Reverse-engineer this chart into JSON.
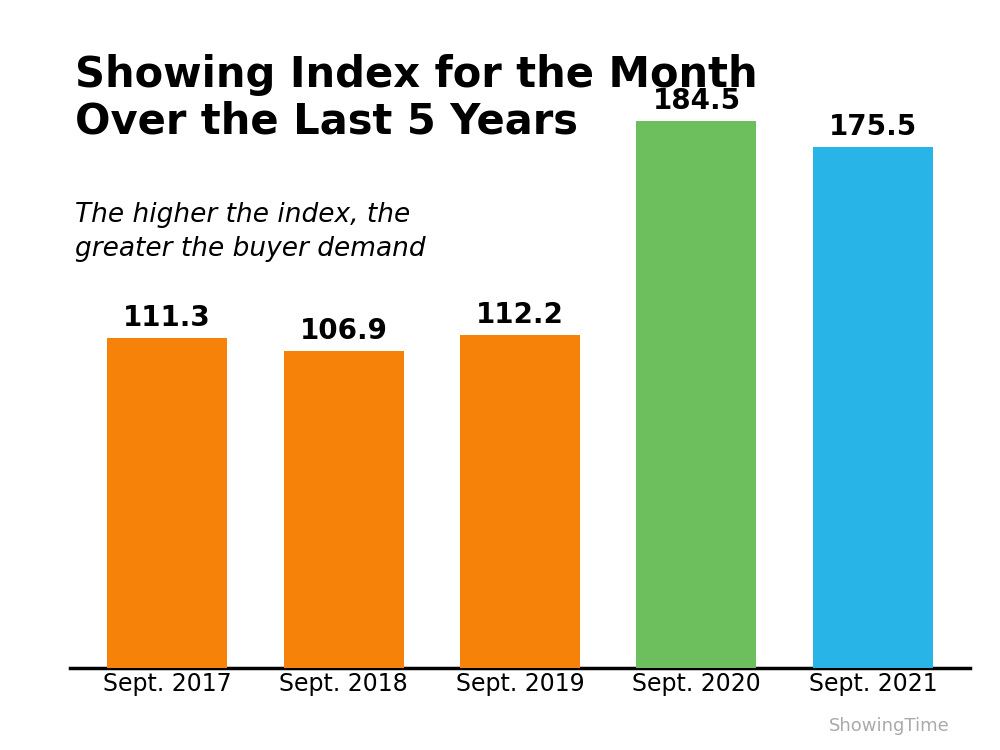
{
  "categories": [
    "Sept. 2017",
    "Sept. 2018",
    "Sept. 2019",
    "Sept. 2020",
    "Sept. 2021"
  ],
  "values": [
    111.3,
    106.9,
    112.2,
    184.5,
    175.5
  ],
  "bar_colors": [
    "#F7820A",
    "#F7820A",
    "#F7820A",
    "#6DBF5E",
    "#29B4E8"
  ],
  "title_line1": "Showing Index for the Month",
  "title_line2": "Over the Last 5 Years",
  "subtitle": "The higher the index, the\ngreater the buyer demand",
  "watermark": "ShowingTime",
  "background_color": "#FFFFFF",
  "title_fontsize": 30,
  "subtitle_fontsize": 19,
  "label_fontsize": 20,
  "xtick_fontsize": 17,
  "watermark_fontsize": 13,
  "ylim": [
    0,
    210
  ]
}
